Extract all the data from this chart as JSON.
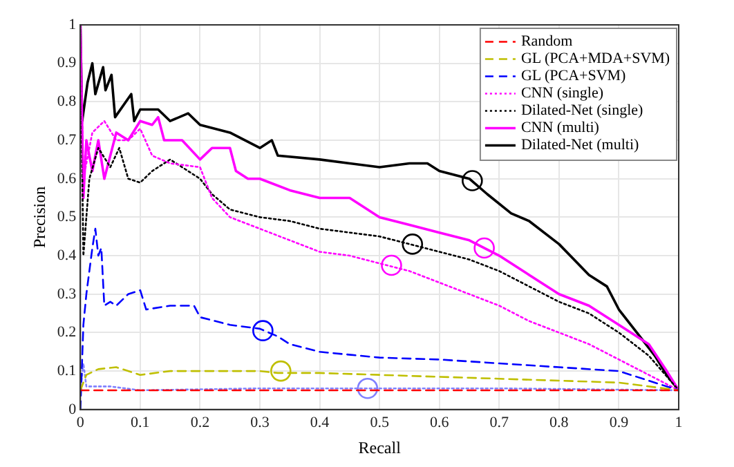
{
  "chart_data": {
    "type": "line",
    "xlabel": "Recall",
    "ylabel": "Precision",
    "xlim": [
      0,
      1
    ],
    "xticks": [
      0,
      0.1,
      0.2,
      0.3,
      0.4,
      0.5,
      0.6,
      0.7,
      0.8,
      0.9,
      1
    ],
    "ylim": [
      0,
      1
    ],
    "yticks": [
      0,
      0.1,
      0.2,
      0.3,
      0.4,
      0.5,
      0.6,
      0.7,
      0.8,
      0.9,
      1
    ],
    "grid": true,
    "legend": "top right",
    "marker": "none",
    "series": [
      {
        "name": "Random",
        "color": "#ff0000",
        "line_style": "dashed",
        "x": [
          0,
          1
        ],
        "values": [
          0.05,
          0.05
        ]
      },
      {
        "name": "GL (PCA+MDA+SVM)",
        "color": "#bfbf00",
        "line_style": "dashed",
        "x": [
          0,
          0.01,
          0.03,
          0.06,
          0.1,
          0.15,
          0.2,
          0.3,
          0.33,
          0.4,
          0.5,
          0.6,
          0.7,
          0.8,
          0.9,
          1
        ],
        "values": [
          0.05,
          0.09,
          0.105,
          0.11,
          0.09,
          0.1,
          0.1,
          0.1,
          0.095,
          0.095,
          0.09,
          0.085,
          0.08,
          0.075,
          0.07,
          0.05
        ]
      },
      {
        "name": "GL (PCA+SVM)",
        "color": "#0000ff",
        "line_style": "dashed",
        "x": [
          0,
          0.005,
          0.01,
          0.02,
          0.025,
          0.03,
          0.035,
          0.04,
          0.05,
          0.06,
          0.08,
          0.1,
          0.11,
          0.15,
          0.19,
          0.2,
          0.25,
          0.3,
          0.33,
          0.35,
          0.4,
          0.5,
          0.6,
          0.7,
          0.8,
          0.9,
          1
        ],
        "values": [
          0,
          0.22,
          0.3,
          0.42,
          0.47,
          0.4,
          0.42,
          0.27,
          0.28,
          0.27,
          0.3,
          0.31,
          0.26,
          0.27,
          0.27,
          0.24,
          0.22,
          0.21,
          0.19,
          0.17,
          0.15,
          0.135,
          0.13,
          0.12,
          0.11,
          0.1,
          0.05
        ]
      },
      {
        "color": "#8080ff",
        "line_style": "dotted",
        "x": [
          0,
          0.005,
          0.01,
          0.05,
          0.1,
          0.3,
          0.5,
          0.7,
          1
        ],
        "values": [
          0.05,
          0.12,
          0.06,
          0.06,
          0.05,
          0.055,
          0.055,
          0.055,
          0.05
        ]
      },
      {
        "name": "CNN (single)",
        "color": "#ff00ff",
        "line_style": "dotted",
        "x": [
          0,
          0.005,
          0.02,
          0.04,
          0.06,
          0.08,
          0.1,
          0.12,
          0.15,
          0.2,
          0.22,
          0.25,
          0.3,
          0.35,
          0.4,
          0.45,
          0.5,
          0.55,
          0.6,
          0.65,
          0.7,
          0.75,
          0.8,
          0.85,
          0.9,
          0.95,
          1
        ],
        "values": [
          1,
          0.6,
          0.72,
          0.75,
          0.7,
          0.7,
          0.73,
          0.66,
          0.64,
          0.63,
          0.55,
          0.5,
          0.47,
          0.44,
          0.41,
          0.4,
          0.38,
          0.36,
          0.33,
          0.3,
          0.27,
          0.23,
          0.2,
          0.17,
          0.13,
          0.09,
          0.05
        ]
      },
      {
        "name": "Dilated-Net (single)",
        "color": "#000000",
        "line_style": "dotted",
        "x": [
          0,
          0.005,
          0.015,
          0.03,
          0.05,
          0.065,
          0.08,
          0.1,
          0.12,
          0.15,
          0.18,
          0.2,
          0.22,
          0.25,
          0.3,
          0.35,
          0.4,
          0.45,
          0.5,
          0.55,
          0.6,
          0.65,
          0.7,
          0.75,
          0.8,
          0.85,
          0.9,
          0.95,
          1
        ],
        "values": [
          1,
          0.4,
          0.6,
          0.68,
          0.63,
          0.68,
          0.6,
          0.59,
          0.62,
          0.65,
          0.62,
          0.6,
          0.56,
          0.52,
          0.5,
          0.49,
          0.47,
          0.46,
          0.45,
          0.43,
          0.41,
          0.39,
          0.36,
          0.32,
          0.28,
          0.25,
          0.2,
          0.14,
          0.05
        ]
      },
      {
        "name": "CNN (multi)",
        "color": "#ff00ff",
        "line_style": "solid",
        "x": [
          0,
          0.005,
          0.01,
          0.02,
          0.03,
          0.04,
          0.06,
          0.08,
          0.1,
          0.12,
          0.13,
          0.14,
          0.17,
          0.2,
          0.22,
          0.25,
          0.26,
          0.28,
          0.3,
          0.35,
          0.4,
          0.45,
          0.5,
          0.55,
          0.6,
          0.65,
          0.7,
          0.75,
          0.8,
          0.85,
          0.9,
          0.95,
          0.98,
          1
        ],
        "values": [
          1,
          0.55,
          0.7,
          0.62,
          0.7,
          0.6,
          0.72,
          0.7,
          0.75,
          0.74,
          0.76,
          0.7,
          0.7,
          0.65,
          0.68,
          0.68,
          0.62,
          0.6,
          0.6,
          0.57,
          0.55,
          0.55,
          0.5,
          0.48,
          0.46,
          0.44,
          0.4,
          0.35,
          0.3,
          0.27,
          0.22,
          0.17,
          0.1,
          0.05
        ]
      },
      {
        "name": "Dilated-Net (multi)",
        "color": "#000000",
        "line_style": "solid",
        "x": [
          0,
          0.003,
          0.012,
          0.02,
          0.025,
          0.038,
          0.042,
          0.052,
          0.058,
          0.085,
          0.09,
          0.1,
          0.13,
          0.15,
          0.18,
          0.2,
          0.25,
          0.3,
          0.32,
          0.33,
          0.4,
          0.45,
          0.5,
          0.55,
          0.58,
          0.6,
          0.65,
          0.68,
          0.72,
          0.75,
          0.8,
          0.85,
          0.88,
          0.9,
          0.93,
          0.96,
          0.98,
          1
        ],
        "values": [
          1,
          0.75,
          0.85,
          0.9,
          0.82,
          0.89,
          0.83,
          0.87,
          0.76,
          0.82,
          0.75,
          0.78,
          0.78,
          0.75,
          0.77,
          0.74,
          0.72,
          0.68,
          0.7,
          0.66,
          0.65,
          0.64,
          0.63,
          0.64,
          0.64,
          0.62,
          0.6,
          0.56,
          0.51,
          0.49,
          0.43,
          0.35,
          0.32,
          0.26,
          0.2,
          0.14,
          0.09,
          0.05
        ]
      },
      {
        "type": "scatter",
        "marker": "circle",
        "color": "#bfbf00",
        "x": [
          0.335
        ],
        "values": [
          0.1
        ]
      },
      {
        "type": "scatter",
        "marker": "circle",
        "color": "#0000ff",
        "x": [
          0.305
        ],
        "values": [
          0.205
        ]
      },
      {
        "type": "scatter",
        "marker": "circle",
        "color": "#8080ff",
        "x": [
          0.48
        ],
        "values": [
          0.055
        ]
      },
      {
        "type": "scatter",
        "marker": "circle",
        "color": "#ff00ff",
        "x": [
          0.52
        ],
        "values": [
          0.375
        ]
      },
      {
        "type": "scatter",
        "marker": "circle",
        "color": "#000000",
        "x": [
          0.555
        ],
        "values": [
          0.43
        ]
      },
      {
        "type": "scatter",
        "marker": "circle",
        "color": "#ff00ff",
        "x": [
          0.675
        ],
        "values": [
          0.42
        ]
      },
      {
        "type": "scatter",
        "marker": "circle",
        "color": "#000000",
        "x": [
          0.655
        ],
        "values": [
          0.595
        ]
      }
    ]
  }
}
